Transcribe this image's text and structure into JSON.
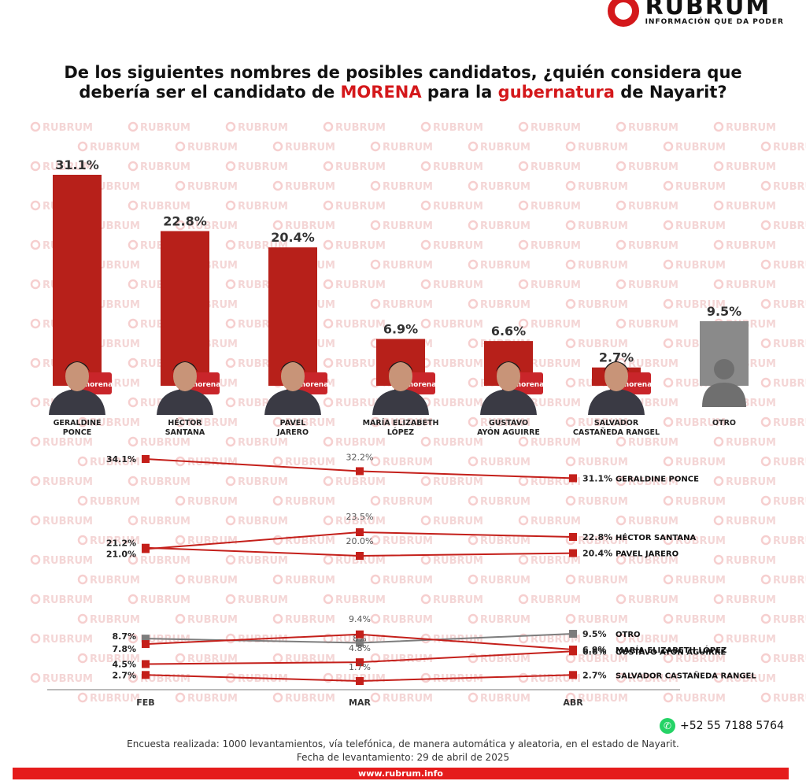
{
  "brand": {
    "name": "RUBRUM",
    "tagline": "INFORMACIÓN QUE DA PODER",
    "watermark": "RUBRUM",
    "party_tag": "morena"
  },
  "title": {
    "line1": "De los siguientes nombres de posibles candidatos, ¿quién considera que",
    "line2_a": "debería ser el candidato de ",
    "line2_party": "MORENA",
    "line2_b": " para la ",
    "line2_office": "gubernatura",
    "line2_c": " de Nayarit?"
  },
  "colors": {
    "accent": "#d4181b",
    "bar": "#b7201a",
    "other": "#8a8a8a"
  },
  "chart_data": [
    {
      "type": "bar",
      "categories": [
        "GERALDINE PONCE",
        "HÉCTOR SANTANA",
        "PAVEL JARERO",
        "MARÍA ELIZABETH LÓPEZ",
        "GUSTAVO AYÓN AGUIRRE",
        "SALVADOR CASTAÑEDA RANGEL",
        "OTRO"
      ],
      "label_lines": [
        [
          "GERALDINE",
          "PONCE"
        ],
        [
          "HÉCTOR",
          "SANTANA"
        ],
        [
          "PAVEL",
          "JARERO"
        ],
        [
          "MARÍA ELIZABETH",
          "LÓPEZ"
        ],
        [
          "GUSTAVO",
          "AYÓN AGUIRRE"
        ],
        [
          "SALVADOR",
          "CASTAÑEDA RANGEL"
        ],
        [
          "OTRO"
        ]
      ],
      "values": [
        31.1,
        22.8,
        20.4,
        6.9,
        6.6,
        2.7,
        9.5
      ],
      "value_labels": [
        "31.1%",
        "22.8%",
        "20.4%",
        "6.9%",
        "6.6%",
        "2.7%",
        "9.5%"
      ],
      "colors": [
        "#b7201a",
        "#b7201a",
        "#b7201a",
        "#b7201a",
        "#b7201a",
        "#b7201a",
        "#8a8a8a"
      ]
    },
    {
      "type": "line",
      "x": [
        "FEB",
        "MAR",
        "ABR"
      ],
      "series": [
        {
          "name": "GERALDINE PONCE",
          "values": [
            34.1,
            32.2,
            31.1
          ],
          "labels": [
            "34.1%",
            "32.2%",
            "31.1%"
          ],
          "color": "#c41f1a"
        },
        {
          "name": "HÉCTOR SANTANA",
          "values": [
            21.0,
            23.5,
            22.8
          ],
          "labels": [
            "21.0%",
            "23.5%",
            "22.8%"
          ],
          "color": "#c41f1a"
        },
        {
          "name": "PAVEL JARERO",
          "values": [
            21.2,
            20.0,
            20.4
          ],
          "labels": [
            "21.2%",
            "20.0%",
            "20.4%"
          ],
          "color": "#c41f1a"
        },
        {
          "name": "OTRO",
          "values": [
            8.7,
            8.0,
            9.5
          ],
          "labels": [
            "8.7%",
            "8%",
            "9.5%"
          ],
          "color": "#7d7d7d"
        },
        {
          "name": "MARÍA ELIZABETH LÓPEZ",
          "values": [
            7.8,
            9.4,
            6.9
          ],
          "labels": [
            "7.8%",
            "9.4%",
            "6.9%"
          ],
          "color": "#c41f1a"
        },
        {
          "name": "GUSTAVO AYÓN AGUIRRE",
          "values": [
            4.5,
            4.8,
            6.6
          ],
          "labels": [
            "4.5%",
            "4.8%",
            "6.6%"
          ],
          "color": "#c41f1a"
        },
        {
          "name": "SALVADOR CASTAÑEDA RANGEL",
          "values": [
            2.7,
            1.7,
            2.7
          ],
          "labels": [
            "2.7%",
            "1.7%",
            "2.7%"
          ],
          "color": "#c41f1a"
        }
      ]
    }
  ],
  "footer": {
    "phone": "+52 55 7188 5764",
    "note1": "Encuesta realizada: 1000 levantamientos, vía telefónica, de manera automática y aleatoria, en el estado de Nayarit.",
    "note2": "Fecha de levantamiento: 29 de abril de 2025",
    "url": "www.rubrum.info"
  }
}
